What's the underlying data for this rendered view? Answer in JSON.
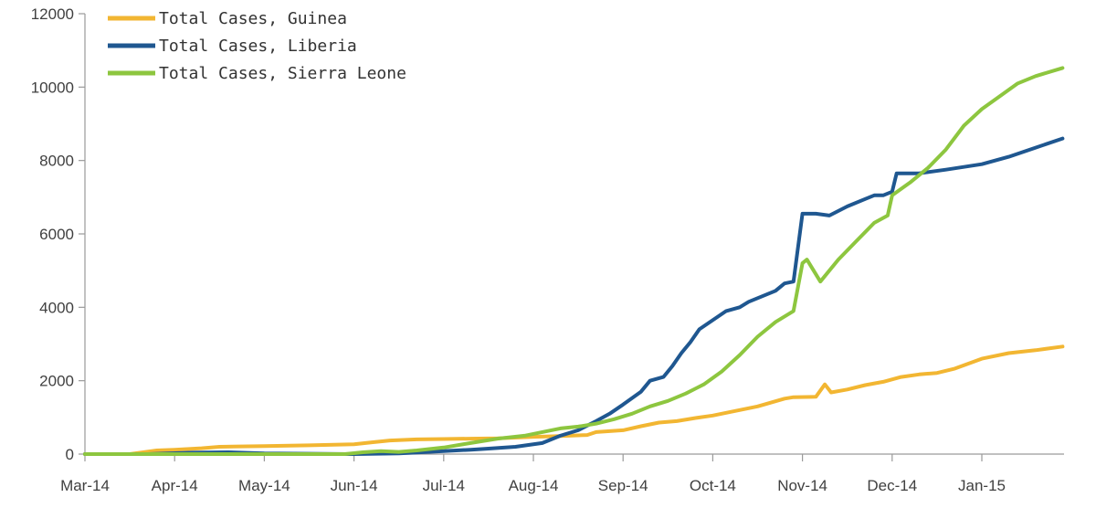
{
  "chart_data": {
    "type": "line",
    "x": [
      "Mar-14",
      "Apr-14",
      "May-14",
      "Jun-14",
      "Jul-14",
      "Aug-14",
      "Sep-14",
      "Oct-14",
      "Nov-14",
      "Dec-14",
      "Jan-15"
    ],
    "y_ticks": [
      "0",
      "2000",
      "4000",
      "6000",
      "8000",
      "10000",
      "12000"
    ],
    "ylim": [
      0,
      12000
    ],
    "grid": false,
    "legend_position": "top-left",
    "series": [
      {
        "name": "Total Cases, Guinea",
        "color": "#F2B632",
        "points": [
          [
            0,
            0
          ],
          [
            0.5,
            0
          ],
          [
            0.8,
            100
          ],
          [
            1.0,
            120
          ],
          [
            1.3,
            160
          ],
          [
            1.5,
            200
          ],
          [
            2.0,
            220
          ],
          [
            2.5,
            240
          ],
          [
            3.0,
            270
          ],
          [
            3.2,
            320
          ],
          [
            3.4,
            370
          ],
          [
            3.7,
            400
          ],
          [
            4.0,
            410
          ],
          [
            4.3,
            420
          ],
          [
            4.6,
            430
          ],
          [
            5.0,
            470
          ],
          [
            5.3,
            490
          ],
          [
            5.6,
            520
          ],
          [
            5.7,
            600
          ],
          [
            6.0,
            650
          ],
          [
            6.2,
            760
          ],
          [
            6.4,
            860
          ],
          [
            6.6,
            900
          ],
          [
            6.8,
            980
          ],
          [
            7.0,
            1050
          ],
          [
            7.2,
            1150
          ],
          [
            7.5,
            1300
          ],
          [
            7.8,
            1510
          ],
          [
            7.9,
            1550
          ],
          [
            8.15,
            1560
          ],
          [
            8.25,
            1900
          ],
          [
            8.32,
            1680
          ],
          [
            8.5,
            1760
          ],
          [
            8.7,
            1880
          ],
          [
            8.9,
            1970
          ],
          [
            9.1,
            2100
          ],
          [
            9.3,
            2170
          ],
          [
            9.5,
            2210
          ],
          [
            9.7,
            2330
          ],
          [
            10.0,
            2600
          ],
          [
            10.3,
            2750
          ],
          [
            10.6,
            2830
          ],
          [
            10.9,
            2930
          ]
        ]
      },
      {
        "name": "Total Cases, Liberia",
        "color": "#1F5790",
        "points": [
          [
            0,
            0
          ],
          [
            0.7,
            0
          ],
          [
            1.2,
            40
          ],
          [
            1.6,
            50
          ],
          [
            2.0,
            20
          ],
          [
            2.5,
            10
          ],
          [
            3.0,
            0
          ],
          [
            3.5,
            20
          ],
          [
            4.0,
            80
          ],
          [
            4.3,
            120
          ],
          [
            4.5,
            150
          ],
          [
            4.8,
            200
          ],
          [
            5.1,
            300
          ],
          [
            5.3,
            500
          ],
          [
            5.5,
            650
          ],
          [
            5.7,
            900
          ],
          [
            5.85,
            1100
          ],
          [
            6.0,
            1350
          ],
          [
            6.2,
            1700
          ],
          [
            6.3,
            2000
          ],
          [
            6.45,
            2100
          ],
          [
            6.55,
            2400
          ],
          [
            6.65,
            2750
          ],
          [
            6.75,
            3050
          ],
          [
            6.85,
            3400
          ],
          [
            7.0,
            3650
          ],
          [
            7.15,
            3900
          ],
          [
            7.3,
            4000
          ],
          [
            7.4,
            4150
          ],
          [
            7.55,
            4300
          ],
          [
            7.7,
            4450
          ],
          [
            7.8,
            4650
          ],
          [
            7.9,
            4700
          ],
          [
            8.0,
            6550
          ],
          [
            8.15,
            6550
          ],
          [
            8.3,
            6500
          ],
          [
            8.5,
            6750
          ],
          [
            8.7,
            6950
          ],
          [
            8.8,
            7050
          ],
          [
            8.9,
            7050
          ],
          [
            9.0,
            7150
          ],
          [
            9.05,
            7650
          ],
          [
            9.3,
            7650
          ],
          [
            9.6,
            7750
          ],
          [
            10.0,
            7900
          ],
          [
            10.3,
            8100
          ],
          [
            10.6,
            8350
          ],
          [
            10.9,
            8600
          ]
        ]
      },
      {
        "name": "Total Cases, Sierra Leone",
        "color": "#8DC63F",
        "points": [
          [
            0,
            0
          ],
          [
            2.9,
            0
          ],
          [
            3.1,
            50
          ],
          [
            3.3,
            80
          ],
          [
            3.5,
            60
          ],
          [
            3.7,
            100
          ],
          [
            4.0,
            180
          ],
          [
            4.3,
            300
          ],
          [
            4.6,
            420
          ],
          [
            4.9,
            500
          ],
          [
            5.1,
            600
          ],
          [
            5.3,
            700
          ],
          [
            5.5,
            750
          ],
          [
            5.7,
            830
          ],
          [
            5.9,
            950
          ],
          [
            6.1,
            1100
          ],
          [
            6.3,
            1300
          ],
          [
            6.5,
            1450
          ],
          [
            6.7,
            1650
          ],
          [
            6.9,
            1900
          ],
          [
            7.1,
            2250
          ],
          [
            7.3,
            2700
          ],
          [
            7.5,
            3200
          ],
          [
            7.7,
            3600
          ],
          [
            7.9,
            3900
          ],
          [
            8.0,
            5200
          ],
          [
            8.05,
            5300
          ],
          [
            8.2,
            4700
          ],
          [
            8.4,
            5300
          ],
          [
            8.6,
            5800
          ],
          [
            8.8,
            6300
          ],
          [
            8.95,
            6500
          ],
          [
            9.0,
            7050
          ],
          [
            9.2,
            7400
          ],
          [
            9.4,
            7800
          ],
          [
            9.6,
            8300
          ],
          [
            9.8,
            8950
          ],
          [
            10.0,
            9400
          ],
          [
            10.2,
            9750
          ],
          [
            10.4,
            10100
          ],
          [
            10.6,
            10300
          ],
          [
            10.9,
            10520
          ]
        ]
      }
    ]
  }
}
